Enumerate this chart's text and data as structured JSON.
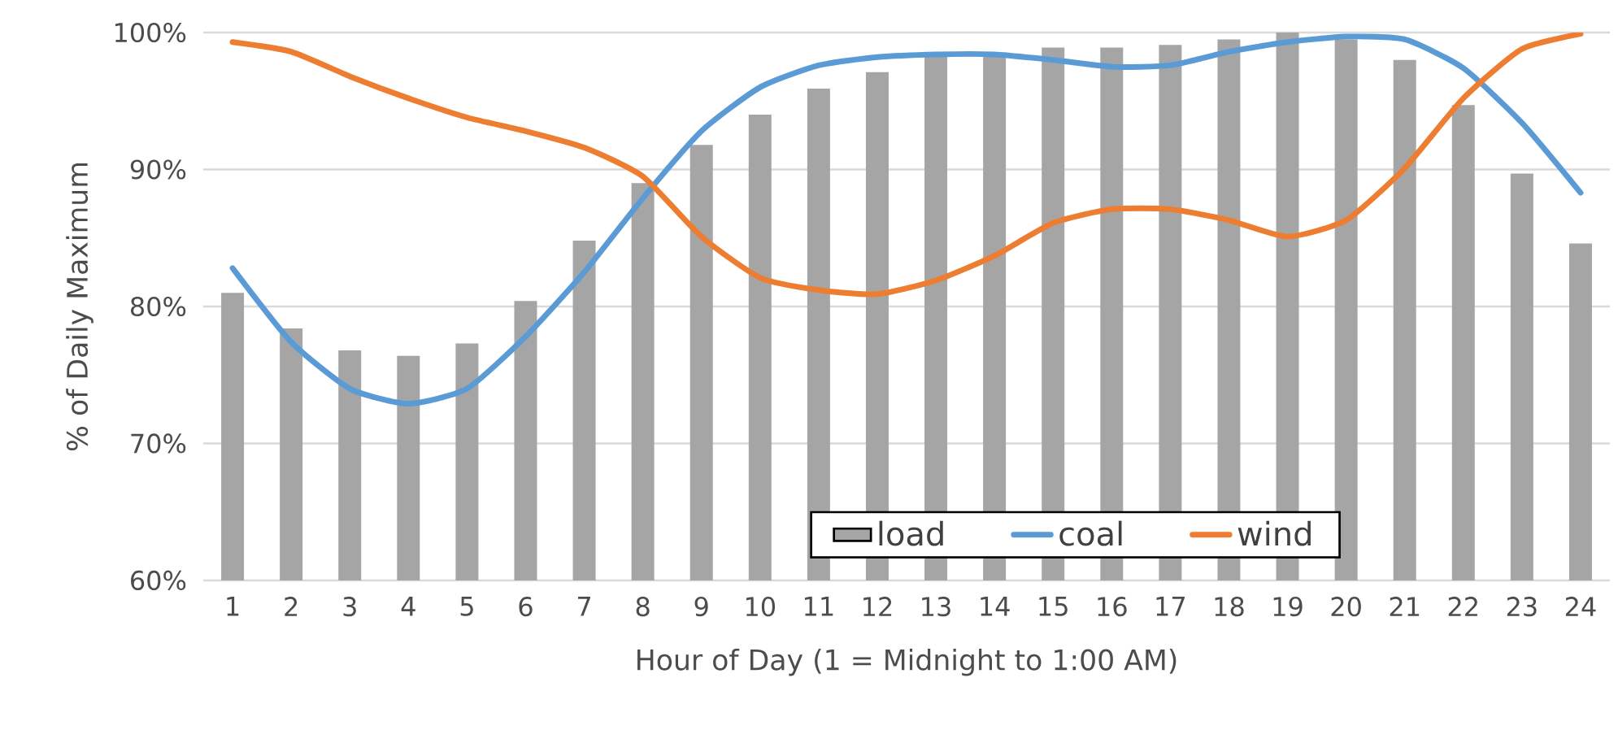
{
  "chart_data": {
    "type": "bar",
    "xlabel": "Hour of Day (1 = Midnight to 1:00 AM)",
    "ylabel": "% of Daily Maximum",
    "categories": [
      "1",
      "2",
      "3",
      "4",
      "5",
      "6",
      "7",
      "8",
      "9",
      "10",
      "11",
      "12",
      "13",
      "14",
      "15",
      "16",
      "17",
      "18",
      "19",
      "20",
      "21",
      "22",
      "23",
      "24"
    ],
    "series": [
      {
        "name": "load",
        "color": "#a5a5a5",
        "values": [
          81.0,
          78.4,
          76.8,
          76.4,
          77.3,
          80.4,
          84.8,
          89.0,
          91.8,
          94.0,
          95.9,
          97.1,
          98.4,
          98.4,
          98.9,
          98.9,
          99.1,
          99.5,
          100,
          99.5,
          98.0,
          94.7,
          89.7,
          84.6
        ]
      },
      {
        "name": "coal",
        "type": "line",
        "color": "#5b9bd5",
        "values": [
          82.8,
          77.4,
          74.0,
          72.9,
          74.0,
          77.8,
          82.5,
          87.9,
          92.8,
          96.0,
          97.6,
          98.2,
          98.4,
          98.4,
          98.0,
          97.5,
          97.6,
          98.6,
          99.3,
          99.7,
          99.5,
          97.4,
          93.4,
          88.3
        ]
      },
      {
        "name": "wind",
        "type": "line",
        "color": "#ed7d31",
        "values": [
          99.3,
          98.6,
          96.8,
          95.2,
          93.8,
          92.8,
          91.6,
          89.5,
          85.1,
          82.1,
          81.2,
          80.9,
          81.9,
          83.7,
          86.1,
          87.1,
          87.1,
          86.3,
          85.1,
          86.3,
          90.1,
          95.2,
          98.8,
          99.9
        ]
      }
    ],
    "ylim": [
      60,
      100
    ],
    "yticks": [
      {
        "value": 60,
        "label": "60%"
      },
      {
        "value": 70,
        "label": "70%"
      },
      {
        "value": 80,
        "label": "80%"
      },
      {
        "value": 90,
        "label": "90%"
      },
      {
        "value": 100,
        "label": "100%"
      }
    ],
    "grid": "y",
    "legend": "bottom",
    "marker": "none",
    "line_style": "solid"
  }
}
